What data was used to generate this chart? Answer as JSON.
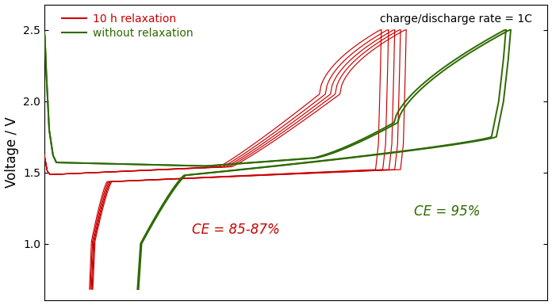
{
  "ylabel": "Voltage / V",
  "annotation_rate": "charge/discharge rate = 1C",
  "annotation_ce_red": "CE = 85-87%",
  "annotation_ce_green": "CE = 95%",
  "legend_red": "10 h relaxation",
  "legend_green": "without relaxation",
  "red_color": "#cc0000",
  "green_color": "#2d6a00",
  "ylim": [
    0.6,
    2.68
  ],
  "xlim": [
    0.0,
    1.05
  ],
  "background_color": "#ffffff",
  "red_cycles": [
    {
      "charge_cap": 0.7,
      "discharge_cap": 0.595
    },
    {
      "charge_cap": 0.715,
      "discharge_cap": 0.608
    },
    {
      "charge_cap": 0.728,
      "discharge_cap": 0.62
    },
    {
      "charge_cap": 0.74,
      "discharge_cap": 0.63
    },
    {
      "charge_cap": 0.752,
      "discharge_cap": 0.64
    }
  ],
  "green_cycles": [
    {
      "charge_cap": 0.96,
      "discharge_cap": 0.912
    },
    {
      "charge_cap": 0.97,
      "discharge_cap": 0.922
    }
  ]
}
